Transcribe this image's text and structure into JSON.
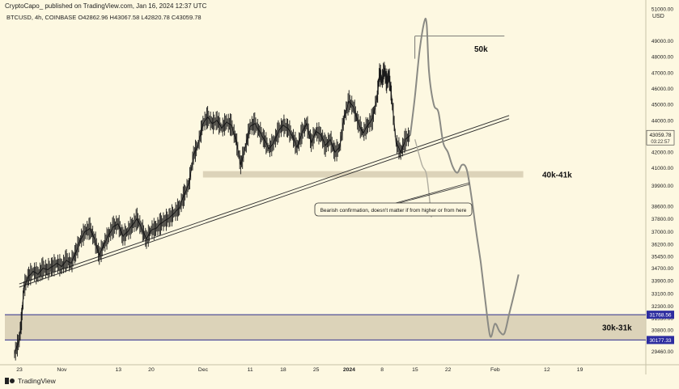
{
  "header": {
    "attribution": "CryptoCapo_ published on TradingView.com, Jan 16, 2024 12:37 UTC",
    "ohlc": "BTCUSD, 4h, COINBASE  O42862.96  H43067.58  L42820.78  C43059.78",
    "currency": "USD"
  },
  "footer": {
    "brand": "TradingView"
  },
  "chart_data": {
    "type": "line",
    "title": "",
    "xlabel": "",
    "ylabel": "",
    "ylim": [
      28800,
      51800
    ],
    "x_tick_labels": [
      "23",
      "Nov",
      "13",
      "20",
      "Dec",
      "11",
      "18",
      "25",
      "2024",
      "8",
      "15",
      "22",
      "Feb",
      "12",
      "19"
    ],
    "x_tick_days": [
      0,
      9,
      21,
      28,
      39,
      49,
      56,
      63,
      70,
      77,
      84,
      91,
      101,
      112,
      119
    ],
    "y_tick_labels": [
      "51000.00",
      "49000.00",
      "48000.00",
      "47000.00",
      "46000.00",
      "45000.00",
      "44000.00",
      "42000.00",
      "41000.00",
      "39900.00",
      "38600.00",
      "37800.00",
      "37000.00",
      "36200.00",
      "35450.00",
      "34700.00",
      "33900.00",
      "33100.00",
      "32300.00",
      "31550.00",
      "30800.00",
      "29460.00"
    ],
    "y_tick_values": [
      51000,
      49000,
      48000,
      47000,
      46000,
      45000,
      44000,
      42000,
      41000,
      39900,
      38600,
      37800,
      37000,
      36200,
      35450,
      34700,
      33900,
      33100,
      32300,
      31550,
      30800,
      29460
    ],
    "grid": false,
    "price_series": {
      "name": "BTCUSD",
      "x": [
        0,
        1,
        1.5,
        2,
        3,
        4,
        5,
        6,
        7,
        8,
        9,
        10,
        11,
        12,
        13,
        14,
        15,
        16,
        17,
        18,
        19,
        20,
        21,
        22,
        23,
        24,
        25,
        26,
        27,
        28,
        29,
        30,
        31,
        32,
        33,
        34,
        35,
        36,
        37,
        38,
        39,
        40,
        41,
        42,
        43,
        44,
        45,
        46,
        47,
        48,
        49,
        50,
        51,
        52,
        53,
        54,
        55,
        56,
        57,
        58,
        59,
        60,
        61,
        62,
        63,
        64,
        65,
        66,
        67,
        68,
        69,
        70,
        71,
        72,
        73,
        74,
        75,
        76,
        77,
        77.5,
        78,
        78.5,
        79,
        79.5,
        80,
        81,
        82,
        83,
        84
      ],
      "y": [
        29300,
        30200,
        31500,
        33500,
        34200,
        34500,
        34300,
        34700,
        34600,
        34800,
        35000,
        34800,
        35200,
        35000,
        35700,
        36500,
        37000,
        37200,
        36500,
        35500,
        36200,
        36800,
        37300,
        37500,
        36700,
        37000,
        37400,
        37800,
        37200,
        36500,
        37100,
        37200,
        37500,
        37700,
        37900,
        38200,
        38500,
        39300,
        40000,
        41800,
        42500,
        43800,
        44200,
        43800,
        44000,
        43500,
        43900,
        43700,
        42800,
        41200,
        42300,
        43600,
        43800,
        43300,
        42800,
        42200,
        42600,
        43300,
        43700,
        43500,
        43000,
        42300,
        43200,
        43800,
        42600,
        43300,
        43100,
        42400,
        42800,
        42000,
        42300,
        44200,
        45200,
        44800,
        43800,
        43200,
        43700,
        44100,
        45500,
        47000,
        46500,
        47200,
        46400,
        46800,
        45600,
        42600,
        42000,
        42800,
        43060
      ]
    },
    "projection_series": {
      "name": "",
      "x": [
        84,
        85,
        86,
        87,
        87.5,
        88,
        89,
        90,
        91,
        92,
        93,
        94,
        95,
        96,
        97,
        98,
        99,
        100,
        101,
        102,
        103,
        104,
        105,
        106,
        107
      ],
      "y": [
        43060,
        45500,
        48400,
        50200,
        50000,
        47000,
        45000,
        44500,
        42600,
        42000,
        41100,
        40700,
        41200,
        40900,
        39200,
        37000,
        35000,
        32500,
        30400,
        31200,
        30700,
        30600,
        31800,
        33000,
        34300
      ]
    },
    "alt_projection": {
      "x": [
        85,
        86.5,
        87.5,
        88.5
      ],
      "y": [
        42800,
        41200,
        40500,
        37900
      ]
    },
    "support_zones": [
      {
        "label": "40k-41k",
        "low": 40400,
        "high": 40800,
        "x_start": 40,
        "x_end": 108
      },
      {
        "label": "30k-31k",
        "low": 30180,
        "high": 31770,
        "x_start": 0,
        "x_end": 124
      }
    ],
    "zone_edge_labels": [
      "31768.56",
      "30177.33"
    ],
    "zone_edge_values": [
      31768.56,
      30177.33
    ],
    "trendline": {
      "x1": 1,
      "y1": 33500,
      "x2": 105,
      "y2": 44100
    },
    "top_line": {
      "x1": 85,
      "x2": 104,
      "y": 49300
    },
    "annotations": [
      {
        "text": "50k"
      },
      {
        "text": "Bearish confirmation, doesn't matter if from higher or from here"
      }
    ],
    "current_price": {
      "label": "43059.78",
      "countdown": "03:22:57",
      "value": 43059.78
    },
    "colors": {
      "background": "#fdf8e1",
      "candles": "#1a1a1a",
      "projection": "#8a8a84",
      "zone": "#d6cdb2",
      "zone_border": "#2d2d8c",
      "trendline": "#2a2a2a"
    }
  }
}
